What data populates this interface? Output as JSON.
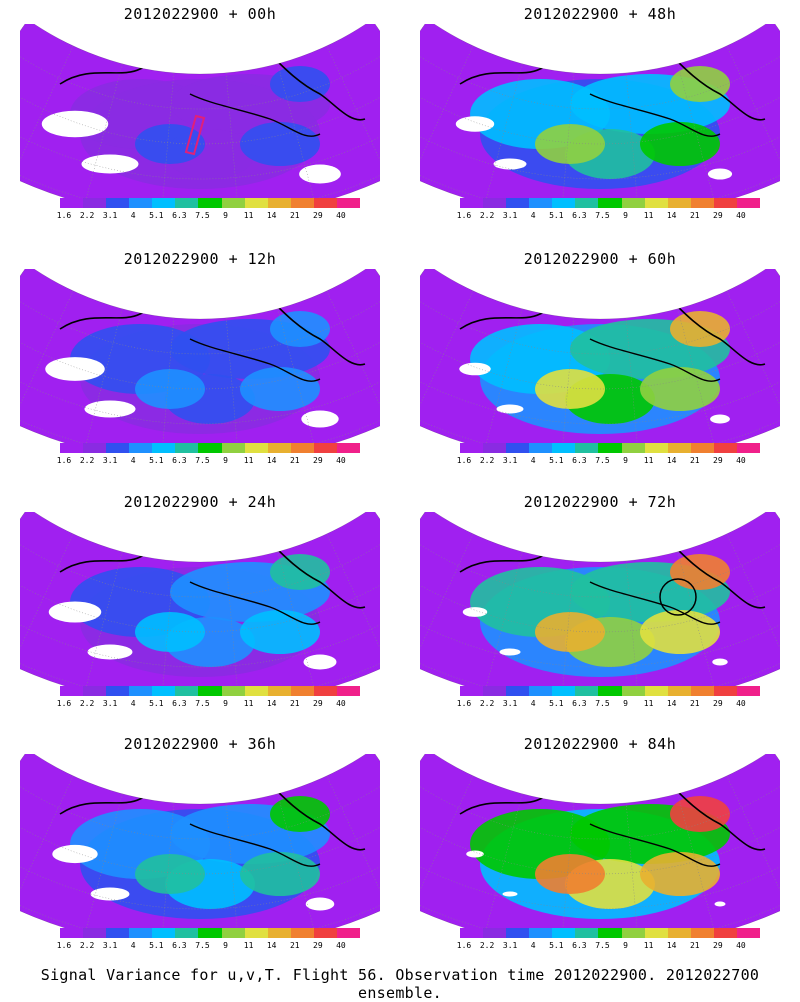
{
  "panels": [
    {
      "title": "2012022900 + 00h",
      "intensity": 0.15,
      "flight_box": true,
      "circle": false
    },
    {
      "title": "2012022900 + 48h",
      "intensity": 0.55,
      "flight_box": false,
      "circle": false
    },
    {
      "title": "2012022900 + 12h",
      "intensity": 0.25,
      "flight_box": false,
      "circle": false
    },
    {
      "title": "2012022900 + 60h",
      "intensity": 0.65,
      "flight_box": false,
      "circle": false
    },
    {
      "title": "2012022900 + 24h",
      "intensity": 0.35,
      "flight_box": false,
      "circle": false
    },
    {
      "title": "2012022900 + 72h",
      "intensity": 0.75,
      "flight_box": false,
      "circle": true
    },
    {
      "title": "2012022900 + 36h",
      "intensity": 0.45,
      "flight_box": false,
      "circle": false
    },
    {
      "title": "2012022900 + 84h",
      "intensity": 0.85,
      "flight_box": false,
      "circle": false
    }
  ],
  "colorbar": {
    "ticks": [
      "1.6",
      "2.2",
      "3.1",
      "4",
      "5.1",
      "6.3",
      "7.5",
      "9",
      "11",
      "14",
      "21",
      "29",
      "40"
    ],
    "colors": [
      "#a020f0",
      "#8a2be2",
      "#3050f0",
      "#1e90ff",
      "#00bfff",
      "#20c0a0",
      "#00c800",
      "#90d040",
      "#e0e040",
      "#e8b030",
      "#f08030",
      "#f04040",
      "#f0208a"
    ]
  },
  "caption": "Signal Variance for u,v,T. Flight 56. Observation time 2012022900. 2012022700 ensemble."
}
